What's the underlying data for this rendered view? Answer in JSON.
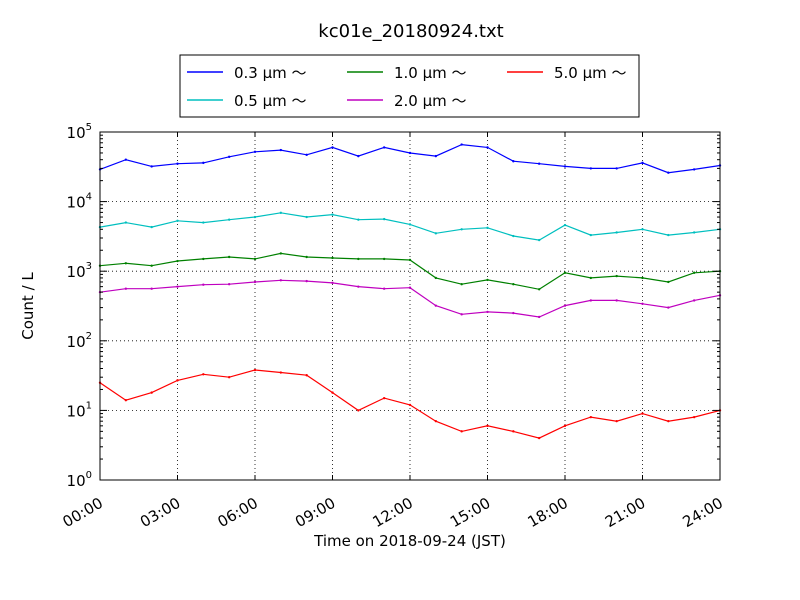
{
  "chart_data": {
    "type": "line",
    "title": "kc01e_20180924.txt",
    "xlabel": "Time on 2018-09-24 (JST)",
    "ylabel": "Count / L",
    "yscale": "log",
    "ylim": [
      1,
      100000
    ],
    "xlim_hours": [
      0,
      24
    ],
    "grid": true,
    "legend_placement": "top-center, above plot, 3 columns",
    "x_tick_labels": [
      "00:00",
      "03:00",
      "06:00",
      "09:00",
      "12:00",
      "15:00",
      "18:00",
      "21:00",
      "24:00"
    ],
    "y_tick_labels": [
      {
        "base": "10",
        "exp": "0"
      },
      {
        "base": "10",
        "exp": "1"
      },
      {
        "base": "10",
        "exp": "2"
      },
      {
        "base": "10",
        "exp": "3"
      },
      {
        "base": "10",
        "exp": "4"
      },
      {
        "base": "10",
        "exp": "5"
      }
    ],
    "x_hours": [
      0,
      1,
      2,
      3,
      4,
      5,
      6,
      7,
      8,
      9,
      10,
      11,
      12,
      13,
      14,
      15,
      16,
      17,
      18,
      19,
      20,
      21,
      22,
      23,
      24
    ],
    "series": [
      {
        "name": "0.3 μm ～",
        "color": "#0000ff",
        "values": [
          29000,
          40000,
          32000,
          35000,
          36000,
          44000,
          52000,
          55000,
          47000,
          60000,
          45000,
          60000,
          50000,
          45000,
          66000,
          60000,
          38000,
          35000,
          32000,
          30000,
          30000,
          36000,
          26000,
          29000,
          33000
        ]
      },
      {
        "name": "0.5 μm ～",
        "color": "#00bfbf",
        "values": [
          4300,
          5000,
          4300,
          5300,
          5000,
          5500,
          6000,
          6900,
          6000,
          6500,
          5500,
          5600,
          4700,
          3500,
          4000,
          4200,
          3200,
          2800,
          4600,
          3300,
          3600,
          4000,
          3300,
          3600,
          4000
        ]
      },
      {
        "name": "1.0 μm ～",
        "color": "#008000",
        "values": [
          1200,
          1300,
          1200,
          1400,
          1500,
          1600,
          1500,
          1800,
          1600,
          1550,
          1500,
          1500,
          1450,
          800,
          650,
          750,
          650,
          550,
          950,
          800,
          850,
          800,
          700,
          950,
          1000
        ]
      },
      {
        "name": "2.0 μm ～",
        "color": "#bf00bf",
        "values": [
          500,
          560,
          560,
          600,
          640,
          650,
          700,
          740,
          720,
          680,
          600,
          560,
          580,
          320,
          240,
          260,
          250,
          220,
          320,
          380,
          380,
          340,
          300,
          380,
          450
        ]
      },
      {
        "name": "5.0 μm ～",
        "color": "#ff0000",
        "values": [
          25,
          14,
          18,
          27,
          33,
          30,
          38,
          35,
          32,
          18,
          10,
          15,
          12,
          7,
          5,
          6,
          5,
          4,
          6,
          8,
          7,
          9,
          7,
          8,
          10
        ]
      }
    ]
  }
}
